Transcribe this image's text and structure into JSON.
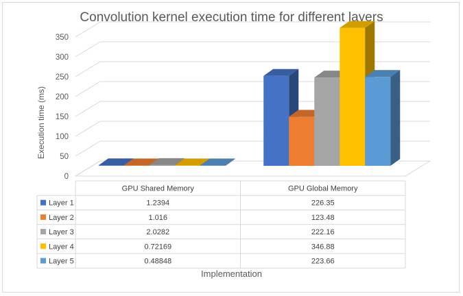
{
  "chart_data": {
    "type": "bar",
    "style": "3d-clustered-column-with-data-table",
    "title": "Convolution kernel execution time for different layers",
    "xlabel": "Implementation",
    "ylabel": "Execution time (ms)",
    "ylim": [
      0,
      350
    ],
    "yticks": [
      0,
      50,
      100,
      150,
      200,
      250,
      300,
      350
    ],
    "grid": true,
    "categories": [
      "GPU Shared Memory",
      "GPU Global Memory"
    ],
    "series": [
      {
        "name": "Layer 1",
        "color": "#4472c4",
        "values": [
          1.2394,
          226.35
        ],
        "labels": [
          "1.2394",
          "226.35"
        ]
      },
      {
        "name": "Layer 2",
        "color": "#ed7d31",
        "values": [
          1.016,
          123.48
        ],
        "labels": [
          "1.016",
          "123.48"
        ]
      },
      {
        "name": "Layer 3",
        "color": "#a5a5a5",
        "values": [
          2.0282,
          222.16
        ],
        "labels": [
          "2.0282",
          "222.16"
        ]
      },
      {
        "name": "Layer 4",
        "color": "#ffc000",
        "values": [
          0.72169,
          346.88
        ],
        "labels": [
          "0.72169",
          "346.88"
        ]
      },
      {
        "name": "Layer 5",
        "color": "#5b9bd5",
        "values": [
          0.48848,
          223.66
        ],
        "labels": [
          "0.48848",
          "223.66"
        ]
      }
    ]
  }
}
